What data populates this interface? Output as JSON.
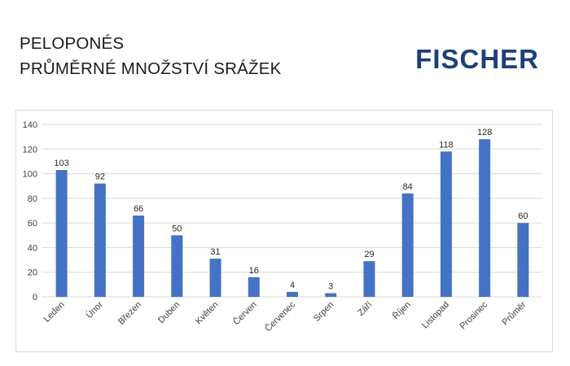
{
  "header": {
    "title_line1": "PELOPONÉS",
    "title_line2": "PRŮMĚRNÉ MNOŽSTVÍ SRÁŽEK",
    "brand": "FISCHER"
  },
  "colors": {
    "bar": "#4472C4",
    "brand": "#1C3F7A",
    "grid": "#D9D9D9"
  },
  "chart_data": {
    "type": "bar",
    "categories": [
      "Leden",
      "Únor",
      "Březen",
      "Duben",
      "Květen",
      "Červen",
      "Červenec",
      "Srpen",
      "Září",
      "Říjen",
      "Listopad",
      "Prosinec",
      "Průměr"
    ],
    "values": [
      103,
      92,
      66,
      50,
      31,
      16,
      4,
      3,
      29,
      84,
      118,
      128,
      60
    ],
    "title": "",
    "xlabel": "",
    "ylabel": "",
    "ylim": [
      0,
      140
    ],
    "yticks": [
      0,
      20,
      40,
      60,
      80,
      100,
      120,
      140
    ],
    "grid": true,
    "data_labels": true
  }
}
